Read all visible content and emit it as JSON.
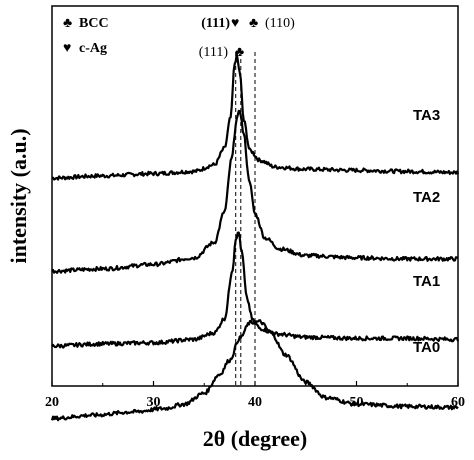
{
  "chart_data": {
    "type": "line",
    "xlabel": "2θ (degree)",
    "ylabel": "intensity (a.u.)",
    "xlim": [
      20,
      60
    ],
    "x_ticks": [
      "20",
      "30",
      "40",
      "50",
      "60"
    ],
    "y_ticks_shown": false,
    "grid": false,
    "legend": [
      {
        "symbol": "♣",
        "label": "BCC"
      },
      {
        "symbol": "♥",
        "label": "c-Ag"
      }
    ],
    "reference_lines_2theta": [
      38.1,
      38.6,
      40.0
    ],
    "peak_annotations": [
      {
        "text": "(111)",
        "symbol": "♥",
        "row": 1
      },
      {
        "symbol": "♣",
        "text": "(110)",
        "row": 1
      },
      {
        "text": "(111)",
        "symbol": "♣",
        "row": 2
      }
    ],
    "series": [
      {
        "name": "TA3",
        "x": [
          20,
          25,
          30,
          34,
          36,
          37,
          37.6,
          38.0,
          38.2,
          38.5,
          38.9,
          39.5,
          40.5,
          42,
          45,
          50,
          55,
          60
        ],
        "y": [
          0.7,
          0.72,
          0.74,
          0.76,
          0.82,
          0.97,
          1.25,
          1.74,
          1.81,
          1.66,
          1.22,
          0.95,
          0.86,
          0.8,
          0.78,
          0.77,
          0.76,
          0.75
        ]
      },
      {
        "name": "TA2",
        "x": [
          20,
          25,
          30,
          34,
          36,
          37,
          37.7,
          38.2,
          38.5,
          38.9,
          39.4,
          40.0,
          41.0,
          42.5,
          45,
          50,
          55,
          60
        ],
        "y": [
          0.6,
          0.62,
          0.66,
          0.72,
          0.86,
          1.14,
          1.62,
          1.98,
          2.06,
          1.84,
          1.44,
          1.12,
          0.9,
          0.8,
          0.74,
          0.72,
          0.71,
          0.71
        ]
      },
      {
        "name": "TA1",
        "x": [
          20,
          25,
          30,
          34,
          36,
          37,
          37.8,
          38.1,
          38.4,
          38.7,
          39.2,
          39.8,
          40.5,
          42,
          45,
          50,
          55,
          60
        ],
        "y": [
          0.7,
          0.72,
          0.73,
          0.76,
          0.82,
          0.95,
          1.4,
          1.68,
          1.73,
          1.55,
          1.13,
          0.93,
          0.86,
          0.81,
          0.78,
          0.77,
          0.77,
          0.76
        ]
      },
      {
        "name": "TA0",
        "x": [
          20,
          24,
          28,
          31,
          33,
          35,
          36.5,
          37.5,
          38.5,
          39.5,
          40.5,
          41.5,
          43,
          45,
          47,
          50,
          55,
          60
        ],
        "y": [
          0.55,
          0.58,
          0.61,
          0.64,
          0.68,
          0.78,
          0.95,
          1.08,
          1.28,
          1.42,
          1.43,
          1.34,
          1.13,
          0.88,
          0.74,
          0.68,
          0.66,
          0.65
        ]
      }
    ]
  }
}
